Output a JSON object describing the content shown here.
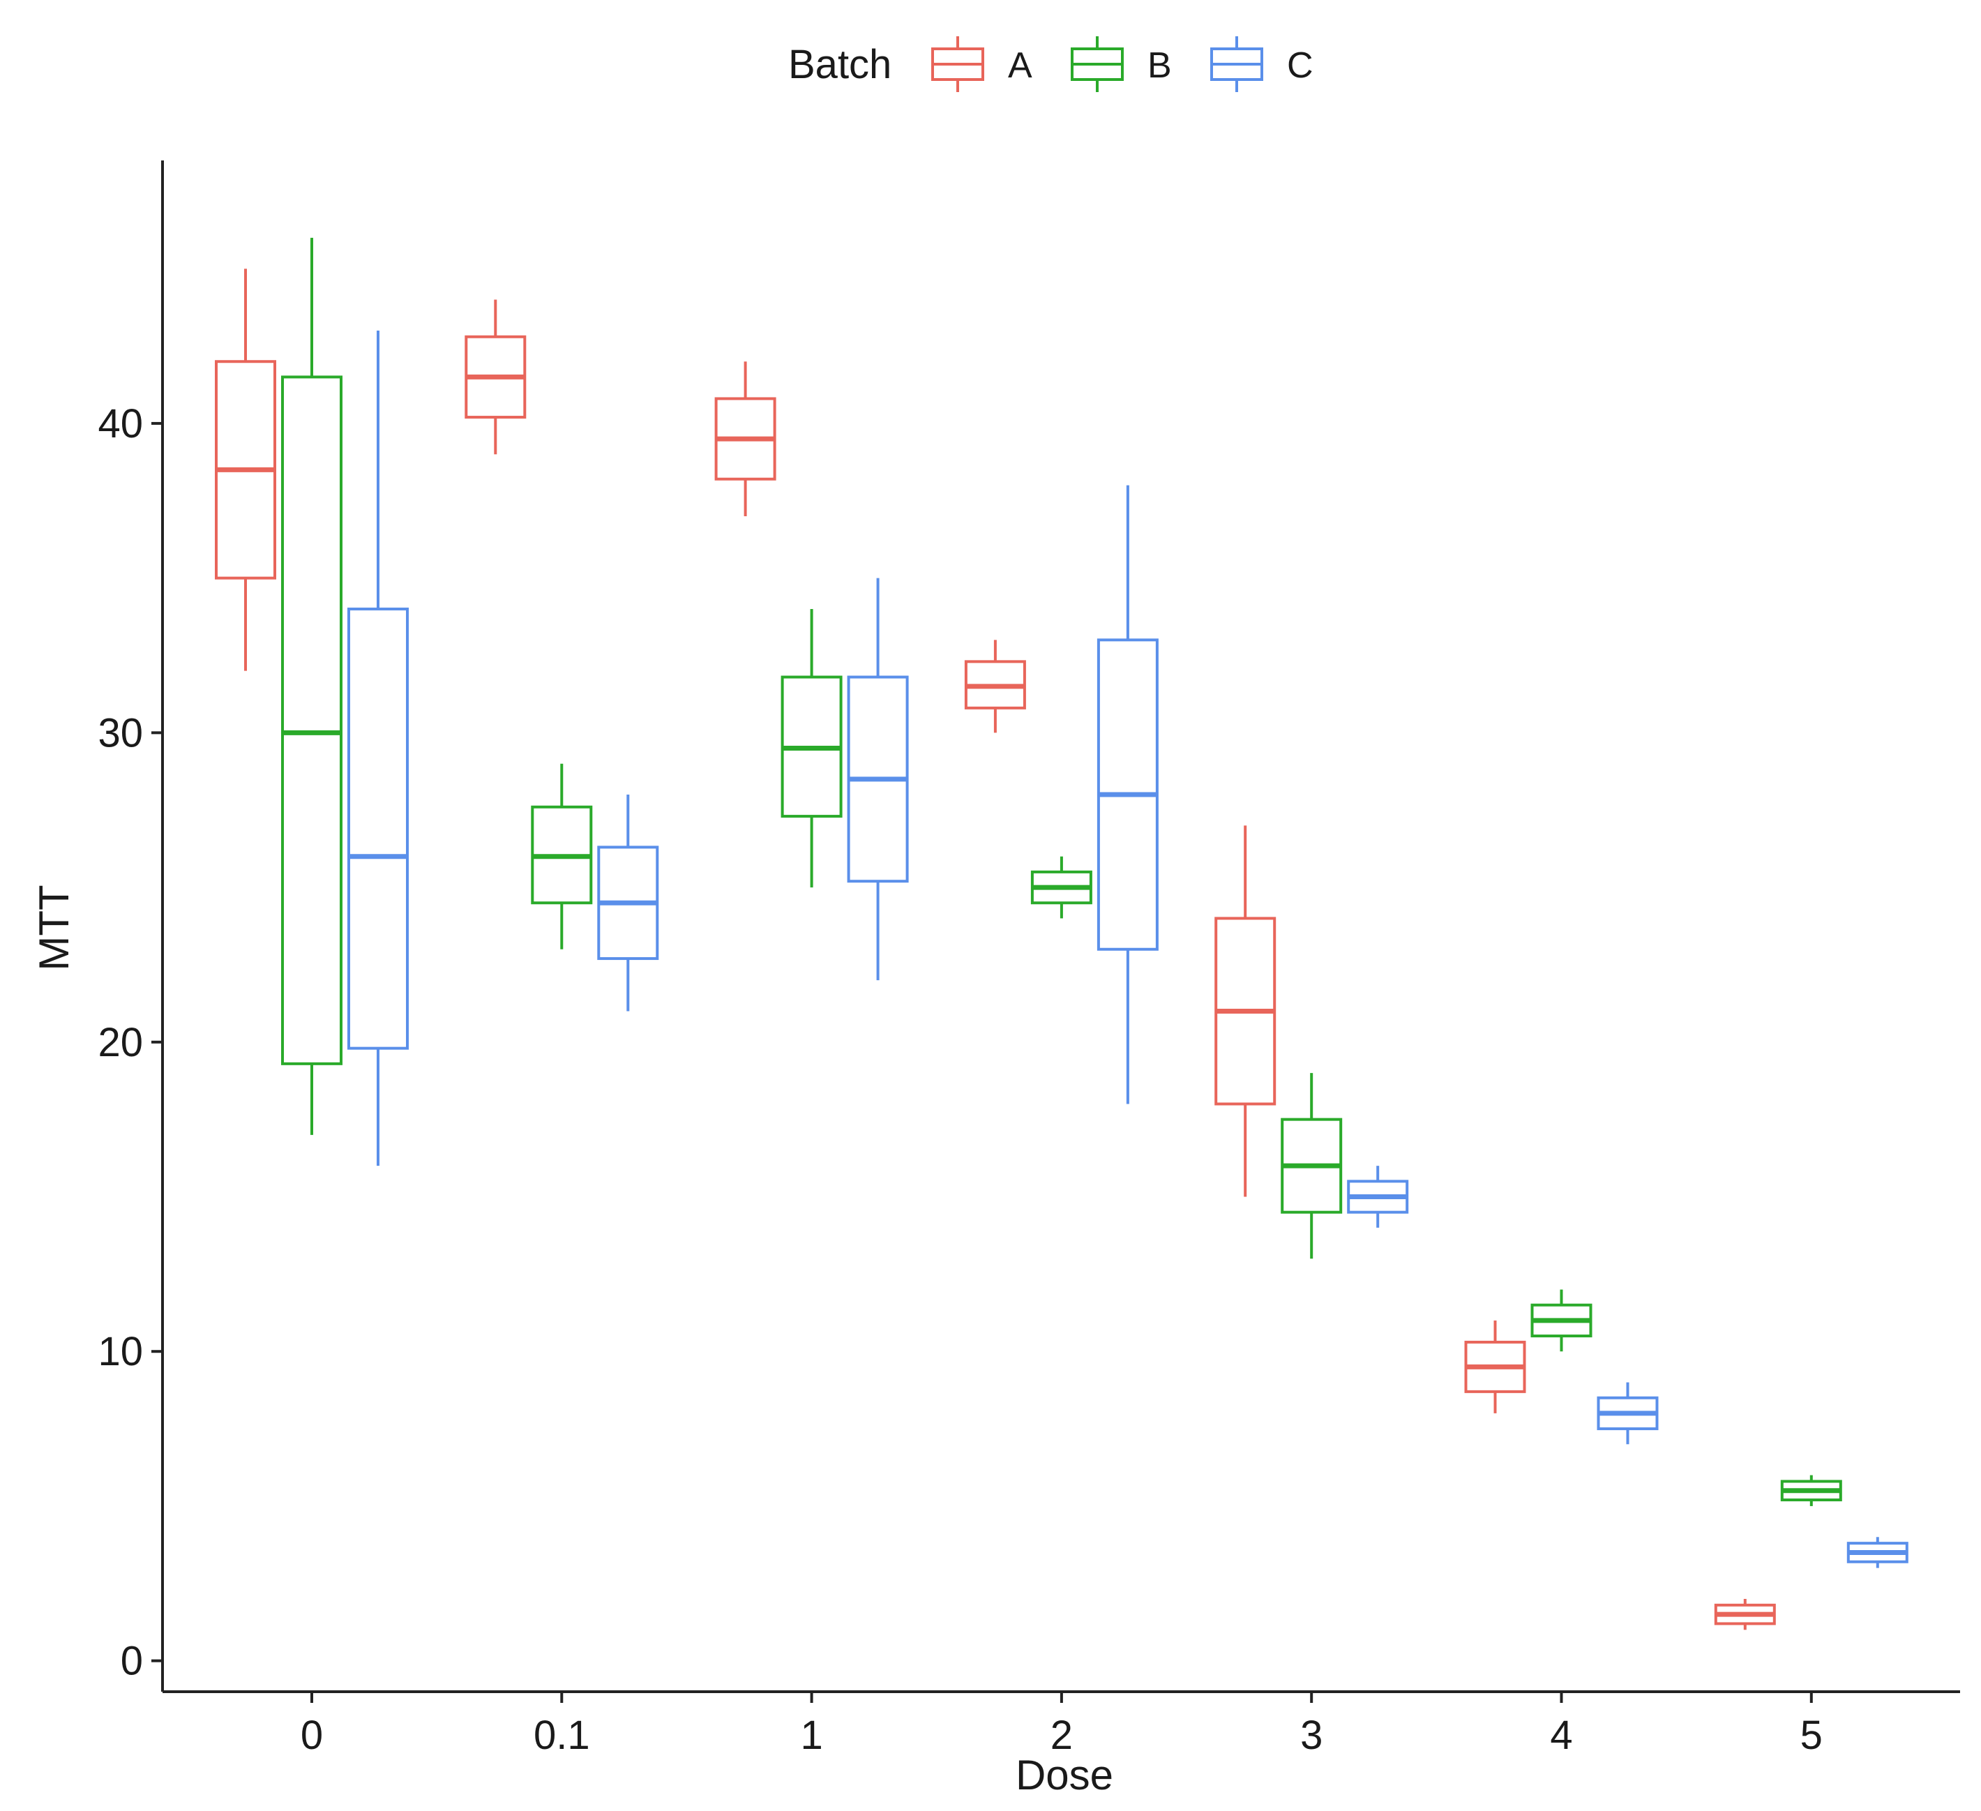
{
  "chart_data": {
    "type": "boxplot",
    "title": "",
    "xlabel": "Dose",
    "ylabel": "MTT",
    "ylim": [
      -1,
      48.5
    ],
    "yticks": [
      0,
      10,
      20,
      30,
      40
    ],
    "categories": [
      "0",
      "0.1",
      "1",
      "2",
      "3",
      "4",
      "5"
    ],
    "legend": {
      "title": "Batch",
      "placement": "top",
      "entries": [
        {
          "name": "A",
          "color": "#E8655A"
        },
        {
          "name": "B",
          "color": "#2AAA2A"
        },
        {
          "name": "C",
          "color": "#5A8FEA"
        }
      ]
    },
    "series": [
      {
        "name": "A",
        "color": "#E8655A",
        "boxes": [
          {
            "category": "0",
            "min": 32,
            "q1": 35,
            "median": 38.5,
            "q3": 42,
            "max": 45
          },
          {
            "category": "0.1",
            "min": 39,
            "q1": 40.2,
            "median": 41.5,
            "q3": 42.8,
            "max": 44
          },
          {
            "category": "1",
            "min": 37,
            "q1": 38.2,
            "median": 39.5,
            "q3": 40.8,
            "max": 42
          },
          {
            "category": "2",
            "min": 30,
            "q1": 30.8,
            "median": 31.5,
            "q3": 32.3,
            "max": 33
          },
          {
            "category": "3",
            "min": 15,
            "q1": 18,
            "median": 21,
            "q3": 24,
            "max": 27
          },
          {
            "category": "4",
            "min": 8,
            "q1": 8.7,
            "median": 9.5,
            "q3": 10.3,
            "max": 11
          },
          {
            "category": "5",
            "min": 1,
            "q1": 1.2,
            "median": 1.5,
            "q3": 1.8,
            "max": 2
          }
        ]
      },
      {
        "name": "B",
        "color": "#2AAA2A",
        "boxes": [
          {
            "category": "0",
            "min": 17,
            "q1": 19.3,
            "median": 30,
            "q3": 41.5,
            "max": 46
          },
          {
            "category": "0.1",
            "min": 23,
            "q1": 24.5,
            "median": 26,
            "q3": 27.6,
            "max": 29
          },
          {
            "category": "1",
            "min": 25,
            "q1": 27.3,
            "median": 29.5,
            "q3": 31.8,
            "max": 34
          },
          {
            "category": "2",
            "min": 24,
            "q1": 24.5,
            "median": 25,
            "q3": 25.5,
            "max": 26
          },
          {
            "category": "3",
            "min": 13,
            "q1": 14.5,
            "median": 16,
            "q3": 17.5,
            "max": 19
          },
          {
            "category": "4",
            "min": 10,
            "q1": 10.5,
            "median": 11,
            "q3": 11.5,
            "max": 12
          },
          {
            "category": "5",
            "min": 5,
            "q1": 5.2,
            "median": 5.5,
            "q3": 5.8,
            "max": 6
          }
        ]
      },
      {
        "name": "C",
        "color": "#5A8FEA",
        "boxes": [
          {
            "category": "0",
            "min": 16,
            "q1": 19.8,
            "median": 26,
            "q3": 34,
            "max": 43
          },
          {
            "category": "0.1",
            "min": 21,
            "q1": 22.7,
            "median": 24.5,
            "q3": 26.3,
            "max": 28
          },
          {
            "category": "1",
            "min": 22,
            "q1": 25.2,
            "median": 28.5,
            "q3": 31.8,
            "max": 35
          },
          {
            "category": "2",
            "min": 18,
            "q1": 23,
            "median": 28,
            "q3": 33,
            "max": 38
          },
          {
            "category": "3",
            "min": 14,
            "q1": 14.5,
            "median": 15,
            "q3": 15.5,
            "max": 16
          },
          {
            "category": "4",
            "min": 7,
            "q1": 7.5,
            "median": 8,
            "q3": 8.5,
            "max": 9
          },
          {
            "category": "5",
            "min": 3,
            "q1": 3.2,
            "median": 3.5,
            "q3": 3.8,
            "max": 4
          }
        ]
      }
    ]
  }
}
